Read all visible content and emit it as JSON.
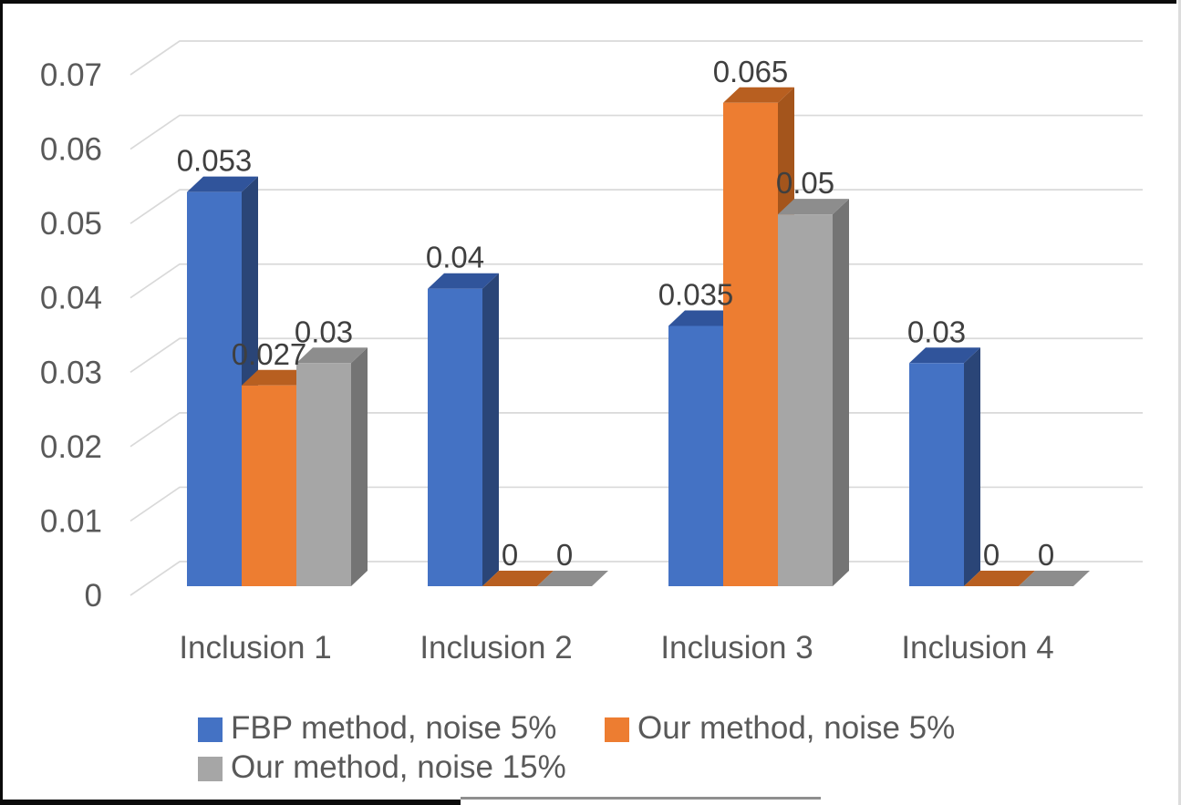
{
  "chart_data": {
    "type": "bar",
    "style": "3d-column",
    "title": "",
    "categories": [
      "Inclusion 1",
      "Inclusion 2",
      "Inclusion 3",
      "Inclusion 4"
    ],
    "series": [
      {
        "name": "FBP method, noise 5%",
        "values": [
          0.053,
          0.04,
          0.035,
          0.03
        ],
        "labels": [
          "0.053",
          "0.04",
          "0.035",
          "0.03"
        ]
      },
      {
        "name": "Our method, noise 5%",
        "values": [
          0.027,
          0,
          0.065,
          0
        ],
        "labels": [
          "0.027",
          "0",
          "0.065",
          "0"
        ]
      },
      {
        "name": "Our method, noise 15%",
        "values": [
          0.03,
          0,
          0.05,
          0
        ],
        "labels": [
          "0.03",
          "0",
          "0.05",
          "0"
        ]
      }
    ],
    "ylim": [
      0,
      0.07
    ],
    "yticks": [
      "0",
      "0.01",
      "0.02",
      "0.03",
      "0.04",
      "0.05",
      "0.06",
      "0.07"
    ],
    "grid": true,
    "legend_position": "bottom",
    "legend_rows": [
      [
        0,
        1
      ],
      [
        2
      ]
    ]
  },
  "colors": {
    "series": [
      {
        "front": "#4472C4",
        "top": "#30549B",
        "side": "#2A4577"
      },
      {
        "front": "#ED7D31",
        "top": "#B85F20",
        "side": "#A4551C"
      },
      {
        "front": "#A6A6A6",
        "top": "#8D8D8D",
        "side": "#747474"
      }
    ],
    "gridline": "#D9D9D9",
    "axis_text": "#595959",
    "data_label_text": "#3F3F3F",
    "figure_border": "#0B0B0B",
    "figure_border_faint": "#8F8F8F",
    "figure_border_right": "#DCDCDC"
  }
}
